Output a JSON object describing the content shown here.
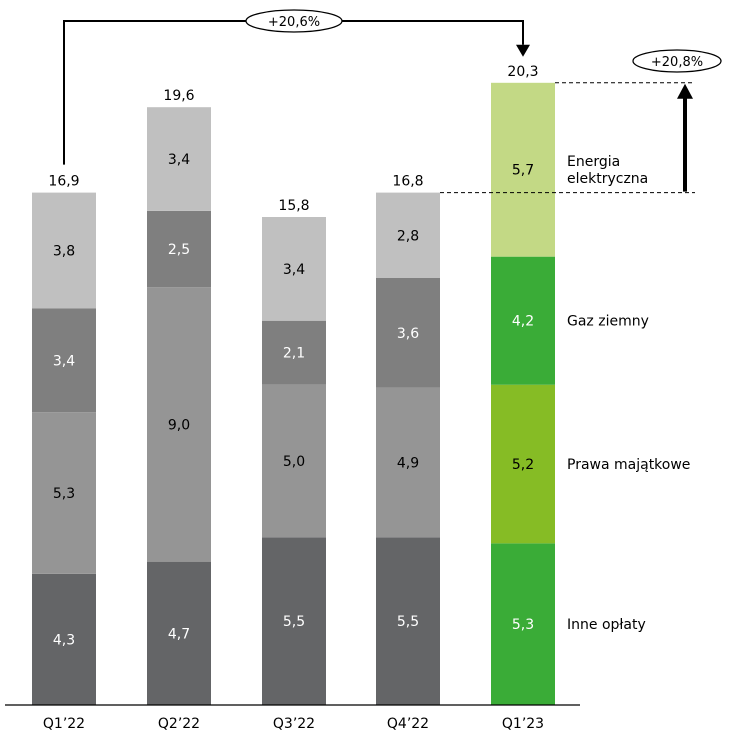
{
  "chart_data": {
    "type": "bar",
    "stacked": true,
    "categories": [
      "Q1’22",
      "Q2’22",
      "Q3’22",
      "Q4’22",
      "Q1’23"
    ],
    "series": [
      {
        "name": "Inne opłaty",
        "values": [
          4.3,
          4.7,
          5.5,
          5.5,
          5.3
        ],
        "labels": [
          "4,3",
          "4,7",
          "5,5",
          "5,5",
          "5,3"
        ]
      },
      {
        "name": "Prawa majątkowe",
        "values": [
          5.3,
          9.0,
          5.0,
          4.9,
          5.2
        ],
        "labels": [
          "5,3",
          "9,0",
          "5,0",
          "4,9",
          "5,2"
        ]
      },
      {
        "name": "Gaz ziemny",
        "values": [
          3.4,
          2.5,
          2.1,
          3.6,
          4.2
        ],
        "labels": [
          "3,4",
          "2,5",
          "2,1",
          "3,6",
          "4,2"
        ]
      },
      {
        "name": "Energia elektryczna",
        "values": [
          3.8,
          3.4,
          3.4,
          2.8,
          5.7
        ],
        "labels": [
          "3,8",
          "3,4",
          "3,4",
          "2,8",
          "5,7"
        ]
      }
    ],
    "totals": [
      16.9,
      19.6,
      15.8,
      16.8,
      20.3
    ],
    "total_labels": [
      "16,9",
      "19,6",
      "15,8",
      "16,8",
      "20,3"
    ],
    "legend_lines": [
      [
        "Energia",
        "elektryczna"
      ],
      [
        "Gaz ziemny"
      ],
      [
        "Prawa majątkowe"
      ],
      [
        "Inne opłaty"
      ]
    ],
    "annotations": {
      "yoy_label": "+20,6%",
      "qoq_label": "+20,8%"
    },
    "ylim": [
      0,
      21
    ],
    "grid": false,
    "legend": "right",
    "colors": {
      "gray": [
        "#646567",
        "#959595",
        "#7f7f7f",
        "#c0c0c0"
      ],
      "green": [
        "#3aac37",
        "#86bc25",
        "#3aac37",
        "#c3d985"
      ],
      "gray_text": [
        "#ffffff",
        "#000000",
        "#ffffff",
        "#000000"
      ],
      "green_text": [
        "#ffffff",
        "#000000",
        "#ffffff",
        "#000000"
      ]
    }
  }
}
